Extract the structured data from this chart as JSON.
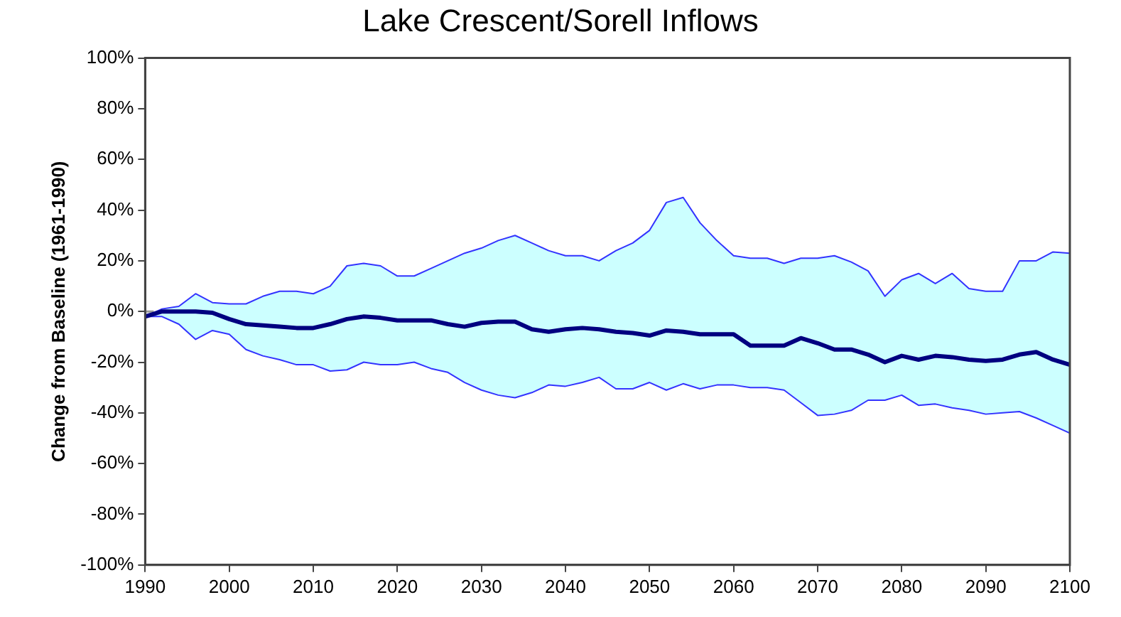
{
  "chart_data": {
    "type": "line",
    "title": "Lake Crescent/Sorell Inflows",
    "ylabel": "Change from Baseline (1961-1990)",
    "x": [
      1990,
      1992,
      1994,
      1996,
      1998,
      2000,
      2002,
      2004,
      2006,
      2008,
      2010,
      2012,
      2014,
      2016,
      2018,
      2020,
      2022,
      2024,
      2026,
      2028,
      2030,
      2032,
      2034,
      2036,
      2038,
      2040,
      2042,
      2044,
      2046,
      2048,
      2050,
      2052,
      2054,
      2056,
      2058,
      2060,
      2062,
      2064,
      2066,
      2068,
      2070,
      2072,
      2074,
      2076,
      2078,
      2080,
      2082,
      2084,
      2086,
      2088,
      2090,
      2092,
      2094,
      2096,
      2098,
      2100
    ],
    "series": [
      {
        "color": "#000080",
        "values": [
          -2,
          0,
          0,
          0,
          -0.5,
          -3,
          -5,
          -5.5,
          -6,
          -6.5,
          -6.5,
          -5,
          -3,
          -2,
          -2.5,
          -3.5,
          -3.5,
          -3.5,
          -5,
          -6,
          -4.5,
          -4,
          -4,
          -7,
          -8,
          -7,
          -6.5,
          -7,
          -8,
          -8.5,
          -9.5,
          -7.5,
          -8,
          -9,
          -9,
          -9,
          -13.5,
          -13.5,
          -13.5,
          -10.5,
          -12.5,
          -15,
          -15,
          -17,
          -20,
          -17.5,
          -19,
          -17.5,
          -18,
          -19,
          -19.5,
          -19,
          -17,
          -16,
          -19,
          -21
        ],
        "upper": [
          -2,
          1,
          2,
          7,
          3.5,
          3,
          3,
          6,
          8,
          8,
          7,
          10,
          18,
          19,
          18,
          14,
          14,
          17,
          20,
          23,
          25,
          28,
          30,
          27,
          24,
          22,
          22,
          20,
          24,
          27,
          32,
          43,
          45,
          35,
          28,
          22,
          21,
          21,
          19,
          21,
          21,
          22,
          19.5,
          16,
          6,
          12.5,
          15,
          11,
          15,
          9,
          8,
          8,
          20,
          20,
          23.5,
          23
        ],
        "lower": [
          -2,
          -2,
          -5,
          -11,
          -7.5,
          -9,
          -15,
          -17.5,
          -19,
          -21,
          -21,
          -23.5,
          -23,
          -20,
          -21,
          -21,
          -20,
          -22.5,
          -24,
          -28,
          -31,
          -33,
          -34,
          -32,
          -29,
          -29.5,
          -28,
          -26,
          -30.5,
          -30.5,
          -28,
          -31,
          -28.5,
          -30.5,
          -29,
          -29,
          -30,
          -30,
          -31,
          -36,
          -41,
          -40.5,
          -39,
          -35,
          -35,
          -33,
          -37,
          -36.5,
          -38,
          -39,
          -40.5,
          -40,
          -39.5,
          -42,
          -45,
          -48
        ]
      },
      {
        "color": "#3333ff",
        "values": [
          -2,
          1,
          2,
          7,
          3.5,
          3,
          3,
          6,
          8,
          8,
          7,
          10,
          18,
          19,
          18,
          14,
          14,
          17,
          20,
          23,
          25,
          28,
          30,
          27,
          24,
          22,
          22,
          20,
          24,
          27,
          32,
          43,
          45,
          35,
          28,
          22,
          21,
          21,
          19,
          21,
          21,
          22,
          19.5,
          16,
          6,
          12.5,
          15,
          11,
          15,
          9,
          8,
          8,
          20,
          20,
          23.5,
          23
        ]
      },
      {
        "color": "#3333ff",
        "values": [
          -2,
          -2,
          -5,
          -11,
          -7.5,
          -9,
          -15,
          -17.5,
          -19,
          -21,
          -21,
          -23.5,
          -23,
          -20,
          -21,
          -21,
          -20,
          -22.5,
          -24,
          -28,
          -31,
          -33,
          -34,
          -32,
          -29,
          -29.5,
          -28,
          -26,
          -30.5,
          -30.5,
          -28,
          -31,
          -28.5,
          -30.5,
          -29,
          -29,
          -30,
          -30,
          -31,
          -36,
          -41,
          -40.5,
          -39,
          -35,
          -35,
          -33,
          -37,
          -36.5,
          -38,
          -39,
          -40.5,
          -40,
          -39.5,
          -42,
          -45,
          -48
        ]
      }
    ],
    "xlim": [
      1990,
      2100
    ],
    "xticks": [
      1990,
      2000,
      2010,
      2020,
      2030,
      2040,
      2050,
      2060,
      2070,
      2080,
      2090,
      2100
    ],
    "ylim": [
      -100,
      100
    ],
    "yticks": [
      {
        "value": -100,
        "label": "-100%"
      },
      {
        "value": -80,
        "label": "-80%"
      },
      {
        "value": -60,
        "label": "-60%"
      },
      {
        "value": -40,
        "label": "-40%"
      },
      {
        "value": -20,
        "label": "-20%"
      },
      {
        "value": 0,
        "label": "0%"
      },
      {
        "value": 20,
        "label": "20%"
      },
      {
        "value": 40,
        "label": "40%"
      },
      {
        "value": 60,
        "label": "60%"
      },
      {
        "value": 80,
        "label": "80%"
      },
      {
        "value": 100,
        "label": "100%"
      }
    ],
    "ref_lines": [
      {
        "axis": "y",
        "value": 0,
        "color": "#999999",
        "line_style": "dashed"
      }
    ],
    "grid": false,
    "legend": false,
    "marker": "none"
  }
}
